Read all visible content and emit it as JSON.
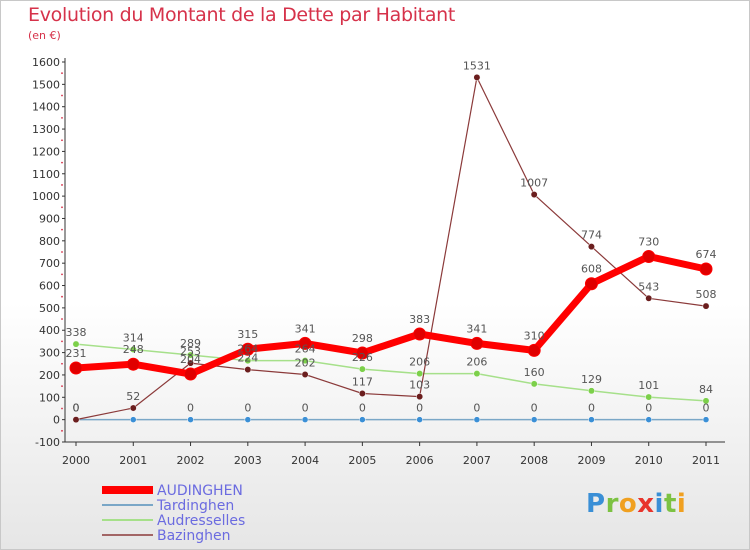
{
  "header": {
    "title": "Evolution du Montant de la Dette par Habitant",
    "subtitle": "(en €)"
  },
  "logo": {
    "text": "Proxiti",
    "letters": [
      {
        "ch": "P",
        "color": "#3a8fd6"
      },
      {
        "ch": "r",
        "color": "#7cc242"
      },
      {
        "ch": "o",
        "color": "#f0a020"
      },
      {
        "ch": "x",
        "color": "#e8342c"
      },
      {
        "ch": "i",
        "color": "#3a8fd6"
      },
      {
        "ch": "t",
        "color": "#7cc242"
      },
      {
        "ch": "i",
        "color": "#f0a020"
      }
    ]
  },
  "chart_data": {
    "type": "line",
    "x": [
      "2000",
      "2001",
      "2002",
      "2003",
      "2004",
      "2005",
      "2006",
      "2007",
      "2008",
      "2009",
      "2010",
      "2011"
    ],
    "ylim": [
      -100,
      1600
    ],
    "yticks": [
      -100,
      0,
      100,
      200,
      300,
      400,
      500,
      600,
      700,
      800,
      900,
      1000,
      1100,
      1200,
      1300,
      1400,
      1500,
      1600
    ],
    "grid": false,
    "legend_position": "bottom-left",
    "series": [
      {
        "name": "AUDINGHEN",
        "color": "#ff0000",
        "marker_color": "#e00000",
        "values": [
          231,
          248,
          204,
          315,
          341,
          298,
          383,
          341,
          310,
          608,
          730,
          674
        ],
        "labels": [
          "231",
          "248",
          "204",
          "315",
          "341",
          "298",
          "383",
          "341",
          "310",
          "608",
          "730",
          "674"
        ]
      },
      {
        "name": "Tardinghen",
        "color": "#7aa7c7",
        "marker_color": "#3a8fd6",
        "values": [
          0,
          0,
          0,
          0,
          0,
          0,
          0,
          0,
          0,
          0,
          0,
          0
        ],
        "labels": [
          "0",
          "",
          "0",
          "0",
          "0",
          "0",
          "0",
          "0",
          "0",
          "0",
          "0",
          "0"
        ]
      },
      {
        "name": "Audresselles",
        "color": "#a6e08a",
        "marker_color": "#7cd04a",
        "values": [
          338,
          314,
          289,
          264,
          264,
          226,
          206,
          206,
          160,
          129,
          101,
          84
        ],
        "labels": [
          "338",
          "314",
          "289",
          "264",
          "264",
          "226",
          "206",
          "206",
          "160",
          "129",
          "101",
          "84"
        ]
      },
      {
        "name": "Bazinghen",
        "color": "#8b3a3a",
        "marker_color": "#6b1e1e",
        "values": [
          0,
          52,
          253,
          224,
          202,
          117,
          103,
          1531,
          1007,
          774,
          543,
          508
        ],
        "labels": [
          "0",
          "52",
          "253",
          "224",
          "202",
          "117",
          "103",
          "1531",
          "1007",
          "774",
          "543",
          "508"
        ]
      }
    ]
  }
}
